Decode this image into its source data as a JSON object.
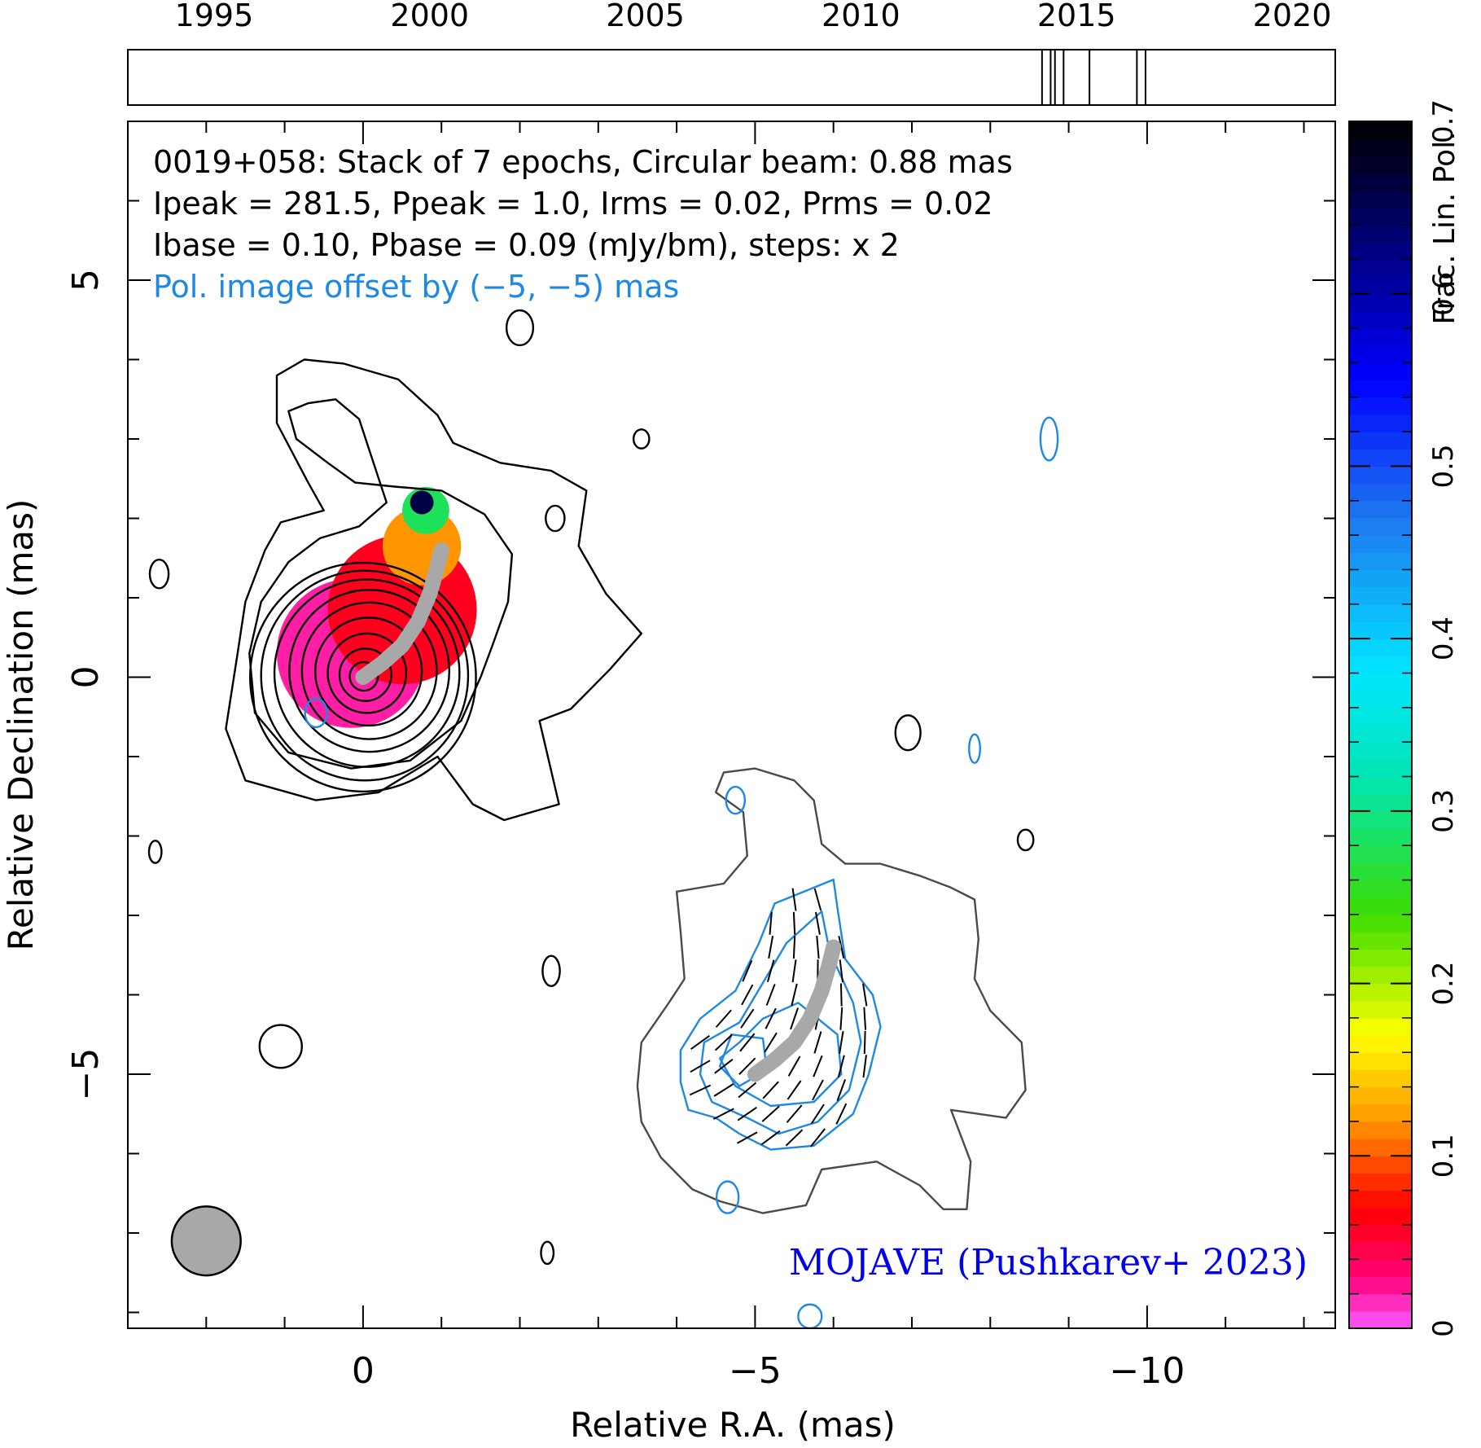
{
  "chart_data": {
    "type": "contour-map",
    "annotation": {
      "line1": "0019+058: Stack of 7 epochs, Circular beam: 0.88 mas",
      "line2": "Ipeak = 281.5, Ppeak = 1.0, Irms = 0.02, Prms = 0.02",
      "line3": "Ibase = 0.10, Pbase = 0.09 (mJy/bm), steps: x 2",
      "line4": "Pol. image offset by (−5, −5) mas"
    },
    "credit": "MOJAVE (Pushkarev+ 2023)",
    "xlabel": "Relative R.A. (mas)",
    "ylabel": "Relative Declination (mas)",
    "colorbar_label": "Frac. Lin. Pol.",
    "xlim": [
      3.0,
      -12.4
    ],
    "ylim": [
      -8.2,
      7.0
    ],
    "x_major_ticks": [
      {
        "value": 0,
        "label": "0"
      },
      {
        "value": -5,
        "label": "−5"
      },
      {
        "value": -10,
        "label": "−10"
      }
    ],
    "y_major_ticks": [
      {
        "value": 5,
        "label": "5"
      },
      {
        "value": 0,
        "label": "0"
      },
      {
        "value": -5,
        "label": "−5"
      }
    ],
    "timeline": {
      "xlim": [
        1993,
        2021
      ],
      "ticks": [
        {
          "value": 1995,
          "label": "1995"
        },
        {
          "value": 2000,
          "label": "2000"
        },
        {
          "value": 2005,
          "label": "2005"
        },
        {
          "value": 2010,
          "label": "2010"
        },
        {
          "value": 2015,
          "label": "2015"
        },
        {
          "value": 2020,
          "label": "2020"
        }
      ],
      "epochs": [
        2014.2,
        2014.4,
        2014.7,
        2015.3,
        2016.4,
        2016.6,
        2014.5
      ]
    },
    "colorbar": {
      "range": [
        0,
        0.7
      ],
      "ticks": [
        {
          "value": 0,
          "label": "0"
        },
        {
          "value": 0.1,
          "label": "0.1"
        },
        {
          "value": 0.2,
          "label": "0.2"
        },
        {
          "value": 0.3,
          "label": "0.3"
        },
        {
          "value": 0.4,
          "label": "0.4"
        },
        {
          "value": 0.5,
          "label": "0.5"
        },
        {
          "value": 0.6,
          "label": "0.6"
        },
        {
          "value": 0.7,
          "label": "0.7"
        }
      ]
    },
    "beam": {
      "x": 2.0,
      "y": -7.1,
      "diameter_mas": 0.88
    },
    "stokes_i_contours": [
      {
        "cx": 0.0,
        "cy": 0.0,
        "rx": 1.44,
        "ry": 1.44
      },
      {
        "cx": -0.02,
        "cy": 0.02,
        "rx": 1.32,
        "ry": 1.32
      },
      {
        "cx": -0.05,
        "cy": 0.05,
        "rx": 1.18,
        "ry": 1.18
      },
      {
        "cx": -0.08,
        "cy": 0.08,
        "rx": 1.02,
        "ry": 1.02
      },
      {
        "cx": -0.08,
        "cy": 0.08,
        "rx": 0.86,
        "ry": 0.86
      },
      {
        "cx": -0.07,
        "cy": 0.07,
        "rx": 0.68,
        "ry": 0.68
      },
      {
        "cx": -0.05,
        "cy": 0.05,
        "rx": 0.5,
        "ry": 0.5
      },
      {
        "cx": -0.03,
        "cy": 0.03,
        "rx": 0.33,
        "ry": 0.33
      },
      {
        "cx": -0.01,
        "cy": 0.01,
        "rx": 0.18,
        "ry": 0.18
      }
    ],
    "stokes_i_islands": [
      {
        "cx": -2.0,
        "cy": 4.4,
        "rx": 0.17,
        "ry": 0.22
      },
      {
        "cx": 2.6,
        "cy": 1.3,
        "rx": 0.12,
        "ry": 0.18
      },
      {
        "cx": -2.45,
        "cy": 2.0,
        "rx": 0.12,
        "ry": 0.16
      },
      {
        "cx": -3.55,
        "cy": 3.0,
        "rx": 0.1,
        "ry": 0.12
      },
      {
        "cx": -6.95,
        "cy": -0.7,
        "rx": 0.16,
        "ry": 0.22
      },
      {
        "cx": -8.45,
        "cy": -2.05,
        "rx": 0.1,
        "ry": 0.13
      },
      {
        "cx": 2.65,
        "cy": -2.2,
        "rx": 0.08,
        "ry": 0.14
      },
      {
        "cx": -2.4,
        "cy": -3.7,
        "rx": 0.11,
        "ry": 0.19
      },
      {
        "cx": 1.05,
        "cy": -4.65,
        "rx": 0.27,
        "ry": 0.27
      },
      {
        "cx": -2.35,
        "cy": -7.25,
        "rx": 0.08,
        "ry": 0.14
      }
    ],
    "stokes_i_outer_contour": [
      [
        1.1,
        3.8
      ],
      [
        0.75,
        4.0
      ],
      [
        0.25,
        3.95
      ],
      [
        -0.45,
        3.75
      ],
      [
        -0.95,
        3.3
      ],
      [
        -1.15,
        2.95
      ],
      [
        -1.75,
        2.7
      ],
      [
        -2.4,
        2.6
      ],
      [
        -2.85,
        2.35
      ],
      [
        -2.75,
        1.65
      ],
      [
        -3.1,
        1.05
      ],
      [
        -3.55,
        0.55
      ],
      [
        -3.15,
        0.1
      ],
      [
        -2.65,
        -0.4
      ],
      [
        -2.25,
        -0.55
      ],
      [
        -2.5,
        -1.6
      ],
      [
        -1.8,
        -1.8
      ],
      [
        -1.4,
        -1.6
      ],
      [
        -0.95,
        -1.0
      ],
      [
        -0.2,
        -1.45
      ],
      [
        0.6,
        -1.55
      ],
      [
        1.5,
        -1.3
      ],
      [
        1.75,
        -0.65
      ],
      [
        1.6,
        0.3
      ],
      [
        1.5,
        0.95
      ],
      [
        1.25,
        1.6
      ],
      [
        1.05,
        1.95
      ],
      [
        0.5,
        2.1
      ],
      [
        0.7,
        2.45
      ],
      [
        1.1,
        3.2
      ]
    ],
    "stokes_i_second_contour": [
      [
        0.35,
        3.5
      ],
      [
        0.7,
        3.45
      ],
      [
        0.95,
        3.35
      ],
      [
        0.85,
        3.0
      ],
      [
        0.45,
        2.7
      ],
      [
        0.1,
        2.45
      ],
      [
        -0.4,
        2.4
      ],
      [
        -1.0,
        2.35
      ],
      [
        -1.55,
        2.05
      ],
      [
        -1.9,
        1.55
      ],
      [
        -1.85,
        0.95
      ],
      [
        -1.65,
        0.4
      ],
      [
        -1.5,
        0.0
      ],
      [
        -1.25,
        -0.55
      ],
      [
        -0.6,
        -1.05
      ],
      [
        0.15,
        -1.15
      ],
      [
        0.95,
        -0.95
      ],
      [
        1.38,
        -0.45
      ],
      [
        1.45,
        0.3
      ],
      [
        1.3,
        0.95
      ],
      [
        0.95,
        1.45
      ],
      [
        0.55,
        1.75
      ],
      [
        0.05,
        1.9
      ],
      [
        -0.3,
        2.2
      ],
      [
        -0.1,
        2.8
      ],
      [
        0.05,
        3.25
      ]
    ],
    "jet_ridge": [
      [
        0.0,
        0.0
      ],
      [
        -0.25,
        0.18
      ],
      [
        -0.5,
        0.4
      ],
      [
        -0.7,
        0.7
      ],
      [
        -0.85,
        1.05
      ],
      [
        -0.95,
        1.4
      ],
      [
        -1.0,
        1.6
      ]
    ],
    "pol_image": {
      "offset": [
        -5,
        -5
      ],
      "outer_contour": [
        [
          -4.6,
          -1.2
        ],
        [
          -5.0,
          -1.15
        ],
        [
          -5.5,
          -1.3
        ],
        [
          -5.75,
          -1.55
        ],
        [
          -5.85,
          -2.1
        ],
        [
          -6.15,
          -2.35
        ],
        [
          -6.6,
          -2.35
        ],
        [
          -7.1,
          -2.5
        ],
        [
          -7.5,
          -2.65
        ],
        [
          -7.8,
          -2.8
        ],
        [
          -7.85,
          -3.3
        ],
        [
          -7.8,
          -3.8
        ],
        [
          -8.0,
          -4.2
        ],
        [
          -8.4,
          -4.6
        ],
        [
          -8.45,
          -5.2
        ],
        [
          -8.2,
          -5.55
        ],
        [
          -7.5,
          -5.45
        ],
        [
          -7.75,
          -6.1
        ],
        [
          -7.7,
          -6.7
        ],
        [
          -7.4,
          -6.7
        ],
        [
          -7.1,
          -6.4
        ],
        [
          -6.55,
          -6.1
        ],
        [
          -5.85,
          -6.2
        ],
        [
          -5.65,
          -6.65
        ],
        [
          -5.1,
          -6.75
        ],
        [
          -4.55,
          -6.6
        ],
        [
          -4.2,
          -6.45
        ],
        [
          -3.8,
          -6.05
        ],
        [
          -3.55,
          -5.6
        ],
        [
          -3.5,
          -5.15
        ],
        [
          -3.55,
          -4.6
        ],
        [
          -3.9,
          -4.1
        ],
        [
          -4.1,
          -3.8
        ],
        [
          -4.05,
          -3.2
        ],
        [
          -4.0,
          -2.7
        ],
        [
          -4.6,
          -2.6
        ],
        [
          -4.9,
          -2.25
        ],
        [
          -4.85,
          -1.7
        ],
        [
          -4.5,
          -1.45
        ]
      ],
      "pol_contours": [
        [
          [
            -5.75,
            -2.65
          ],
          [
            -6.0,
            -2.55
          ],
          [
            -6.05,
            -2.9
          ],
          [
            -6.15,
            -3.55
          ],
          [
            -6.5,
            -4.0
          ],
          [
            -6.6,
            -4.4
          ],
          [
            -6.45,
            -5.0
          ],
          [
            -6.25,
            -5.5
          ],
          [
            -5.75,
            -5.9
          ],
          [
            -5.2,
            -5.95
          ],
          [
            -4.8,
            -5.75
          ],
          [
            -4.5,
            -5.55
          ],
          [
            -4.15,
            -5.45
          ],
          [
            -4.05,
            -5.1
          ],
          [
            -4.05,
            -4.7
          ],
          [
            -4.3,
            -4.3
          ],
          [
            -4.75,
            -3.95
          ],
          [
            -5.05,
            -3.35
          ],
          [
            -5.25,
            -2.85
          ]
        ],
        [
          [
            -5.85,
            -2.95
          ],
          [
            -5.95,
            -3.45
          ],
          [
            -6.25,
            -4.1
          ],
          [
            -6.35,
            -4.6
          ],
          [
            -6.2,
            -5.2
          ],
          [
            -5.8,
            -5.6
          ],
          [
            -5.3,
            -5.75
          ],
          [
            -4.9,
            -5.55
          ],
          [
            -4.45,
            -5.35
          ],
          [
            -4.3,
            -5.0
          ],
          [
            -4.35,
            -4.6
          ],
          [
            -4.8,
            -4.35
          ],
          [
            -5.1,
            -3.85
          ],
          [
            -5.4,
            -3.35
          ]
        ],
        [
          [
            -5.1,
            -4.3
          ],
          [
            -5.55,
            -4.1
          ],
          [
            -6.05,
            -4.5
          ],
          [
            -6.1,
            -5.0
          ],
          [
            -5.75,
            -5.35
          ],
          [
            -5.2,
            -5.4
          ],
          [
            -4.75,
            -5.15
          ],
          [
            -4.55,
            -4.8
          ],
          [
            -4.8,
            -4.6
          ]
        ],
        [
          [
            -4.7,
            -4.5
          ],
          [
            -5.1,
            -4.55
          ],
          [
            -5.15,
            -4.95
          ],
          [
            -4.8,
            -5.15
          ],
          [
            -4.55,
            -4.9
          ]
        ]
      ],
      "pol_islands": [
        {
          "cx": -8.75,
          "cy": 3.0,
          "rx": 0.11,
          "ry": 0.27
        },
        {
          "cx": -7.8,
          "cy": -0.9,
          "rx": 0.07,
          "ry": 0.18
        },
        {
          "cx": 0.6,
          "cy": -0.45,
          "rx": 0.14,
          "ry": 0.18
        },
        {
          "cx": -4.75,
          "cy": -1.55,
          "rx": 0.12,
          "ry": 0.17
        },
        {
          "cx": -4.65,
          "cy": -6.55,
          "rx": 0.14,
          "ry": 0.2
        },
        {
          "cx": -5.7,
          "cy": -8.05,
          "rx": 0.15,
          "ry": 0.15
        }
      ]
    },
    "evpa_field": {
      "center": [
        -5.4,
        -4.5
      ],
      "step": 0.3,
      "angle_deg": 115
    },
    "frac_pol_map": [
      {
        "x": 0.15,
        "y": 0.3,
        "r": 0.95,
        "value": 0.02
      },
      {
        "x": -0.5,
        "y": 0.85,
        "r": 0.95,
        "value": 0.06
      },
      {
        "x": -0.75,
        "y": 1.65,
        "r": 0.5,
        "value": 0.12
      },
      {
        "x": -0.8,
        "y": 2.1,
        "r": 0.3,
        "value": 0.28
      },
      {
        "x": -0.75,
        "y": 2.2,
        "r": 0.15,
        "value": 0.66
      }
    ]
  }
}
